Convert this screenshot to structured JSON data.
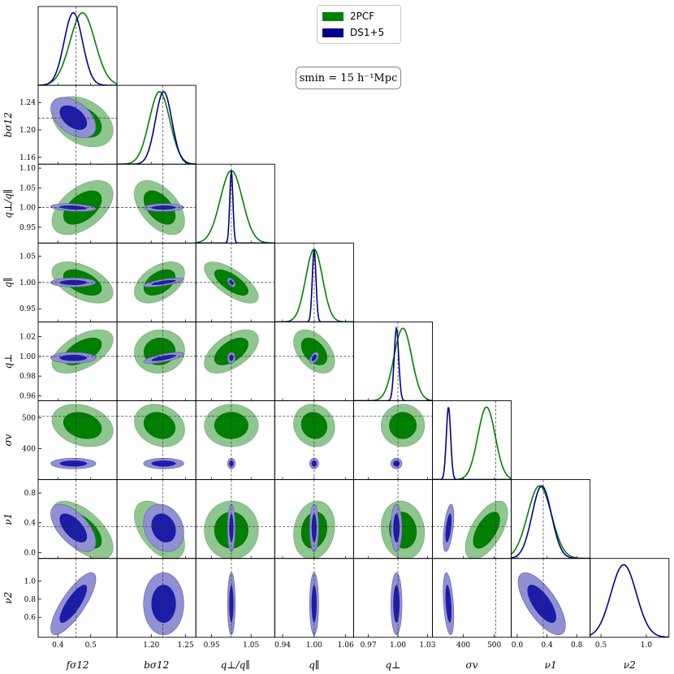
{
  "chart_data": {
    "type": "corner",
    "parameters": [
      {
        "name": "fσ12",
        "truth": 0.455,
        "range": [
          0.34,
          0.58
        ],
        "ticks": [
          {
            "v": 0.4,
            "t": "0.4"
          },
          {
            "v": 0.5,
            "t": "0.5"
          }
        ]
      },
      {
        "name": "bσ12",
        "truth": 1.217,
        "range": [
          1.15,
          1.265
        ],
        "ticks": [
          {
            "v": 1.16,
            "t": "1.16"
          },
          {
            "v": 1.2,
            "t": "1.20"
          },
          {
            "v": 1.24,
            "t": "1.24"
          }
        ],
        "xticks": [
          {
            "v": 1.2,
            "t": "1.20"
          },
          {
            "v": 1.25,
            "t": "1.25"
          }
        ]
      },
      {
        "name": "q⊥/q∥",
        "truth": 1.0,
        "range": [
          0.91,
          1.11
        ],
        "ticks": [
          {
            "v": 0.95,
            "t": "0.95"
          },
          {
            "v": 1.0,
            "t": "1.00"
          },
          {
            "v": 1.05,
            "t": "1.05"
          },
          {
            "v": 1.1,
            "t": "1.10"
          }
        ],
        "xticks": [
          {
            "v": 0.95,
            "t": "0.95"
          },
          {
            "v": 1.05,
            "t": "1.05"
          }
        ]
      },
      {
        "name": "q∥",
        "truth": 1.0,
        "range": [
          0.925,
          1.075
        ],
        "ticks": [
          {
            "v": 0.95,
            "t": "0.95"
          },
          {
            "v": 1.0,
            "t": "1.00"
          },
          {
            "v": 1.05,
            "t": "1.05"
          }
        ],
        "xticks": [
          {
            "v": 0.94,
            "t": "0.94"
          },
          {
            "v": 1.0,
            "t": "1.00"
          },
          {
            "v": 1.06,
            "t": "1.06"
          }
        ]
      },
      {
        "name": "q⊥",
        "truth": 1.0,
        "range": [
          0.955,
          1.035
        ],
        "ticks": [
          {
            "v": 0.96,
            "t": "0.96"
          },
          {
            "v": 0.98,
            "t": "0.98"
          },
          {
            "v": 1.0,
            "t": "1.00"
          },
          {
            "v": 1.02,
            "t": "1.02"
          }
        ],
        "xticks": [
          {
            "v": 0.97,
            "t": "0.97"
          },
          {
            "v": 1.0,
            "t": "1.00"
          },
          {
            "v": 1.03,
            "t": "1.03"
          }
        ]
      },
      {
        "name": "σv",
        "truth": 505,
        "range": [
          300,
          555
        ],
        "ticks": [
          {
            "v": 400,
            "t": "400"
          },
          {
            "v": 500,
            "t": "500"
          }
        ]
      },
      {
        "name": "ν1",
        "truth": 0.35,
        "range": [
          -0.08,
          0.98
        ],
        "ticks": [
          {
            "v": 0.0,
            "t": "0.0"
          },
          {
            "v": 0.4,
            "t": "0.4"
          },
          {
            "v": 0.8,
            "t": "0.8"
          }
        ],
        "xticks": [
          {
            "v": 0.0,
            "t": "0.0"
          },
          {
            "v": 0.4,
            "t": "0.4"
          },
          {
            "v": 0.8,
            "t": "0.8"
          }
        ]
      },
      {
        "name": "ν2",
        "truth": null,
        "range": [
          0.38,
          1.25
        ],
        "ticks": [
          {
            "v": 0.6,
            "t": "0.6"
          },
          {
            "v": 0.8,
            "t": "0.8"
          },
          {
            "v": 1.0,
            "t": "1.0"
          }
        ],
        "xticks": [
          {
            "v": 0.5,
            "t": "0.5"
          },
          {
            "v": 1.0,
            "t": "1.0"
          }
        ]
      }
    ],
    "series": [
      {
        "name": "2PCF",
        "color": "#008000",
        "mean": [
          0.475,
          1.212,
          1.0,
          1.0,
          1.005,
          475,
          0.3,
          null
        ],
        "sigma": [
          0.038,
          0.015,
          0.028,
          0.016,
          0.009,
          28,
          0.16,
          null
        ]
      },
      {
        "name": "DS1+5",
        "color": "#00008b",
        "mean": [
          0.447,
          1.218,
          1.0,
          1.0,
          0.9985,
          352,
          0.33,
          0.75
        ],
        "sigma": [
          0.028,
          0.012,
          0.004,
          0.0035,
          0.0023,
          7,
          0.13,
          0.14
        ]
      }
    ],
    "correlations": {
      "2PCF": {
        "1_0": -0.35,
        "2_0": 0.5,
        "2_1": -0.5,
        "3_0": -0.5,
        "3_1": 0.45,
        "3_2": -0.7,
        "4_0": 0.55,
        "4_1": 0.05,
        "4_2": 0.55,
        "4_3": -0.45,
        "5_0": -0.25,
        "5_1": -0.2,
        "5_2": 0.0,
        "5_3": -0.1,
        "5_4": 0.0,
        "6_0": -0.6,
        "6_1": -0.5,
        "6_2": 0.0,
        "6_3": 0.15,
        "6_4": -0.1,
        "6_5": 0.6
      },
      "DS1+5": {
        "1_0": -0.45,
        "2_0": -0.3,
        "2_1": 0.05,
        "3_0": 0.0,
        "3_1": 0.7,
        "3_2": -0.5,
        "4_0": 0.0,
        "4_1": 0.7,
        "4_2": 0.05,
        "4_3": 0.5,
        "5_0": 0.0,
        "5_1": 0.0,
        "5_2": 0.0,
        "5_3": 0.0,
        "5_4": 0.0,
        "6_0": -0.6,
        "6_1": -0.2,
        "6_2": 0.0,
        "6_3": 0.0,
        "6_4": 0.0,
        "6_5": 0.5,
        "7_0": 0.8,
        "7_1": 0.0,
        "7_2": 0.0,
        "7_3": 0.0,
        "7_4": 0.0,
        "7_5": -0.4,
        "7_6": -0.7
      }
    },
    "legend": [
      {
        "label": "2PCF",
        "color": "#008000"
      },
      {
        "label": "DS1+5",
        "color": "#00008b"
      }
    ],
    "legend_position": "top-right",
    "annotation": "smin = 15 h⁻¹Mpc"
  }
}
